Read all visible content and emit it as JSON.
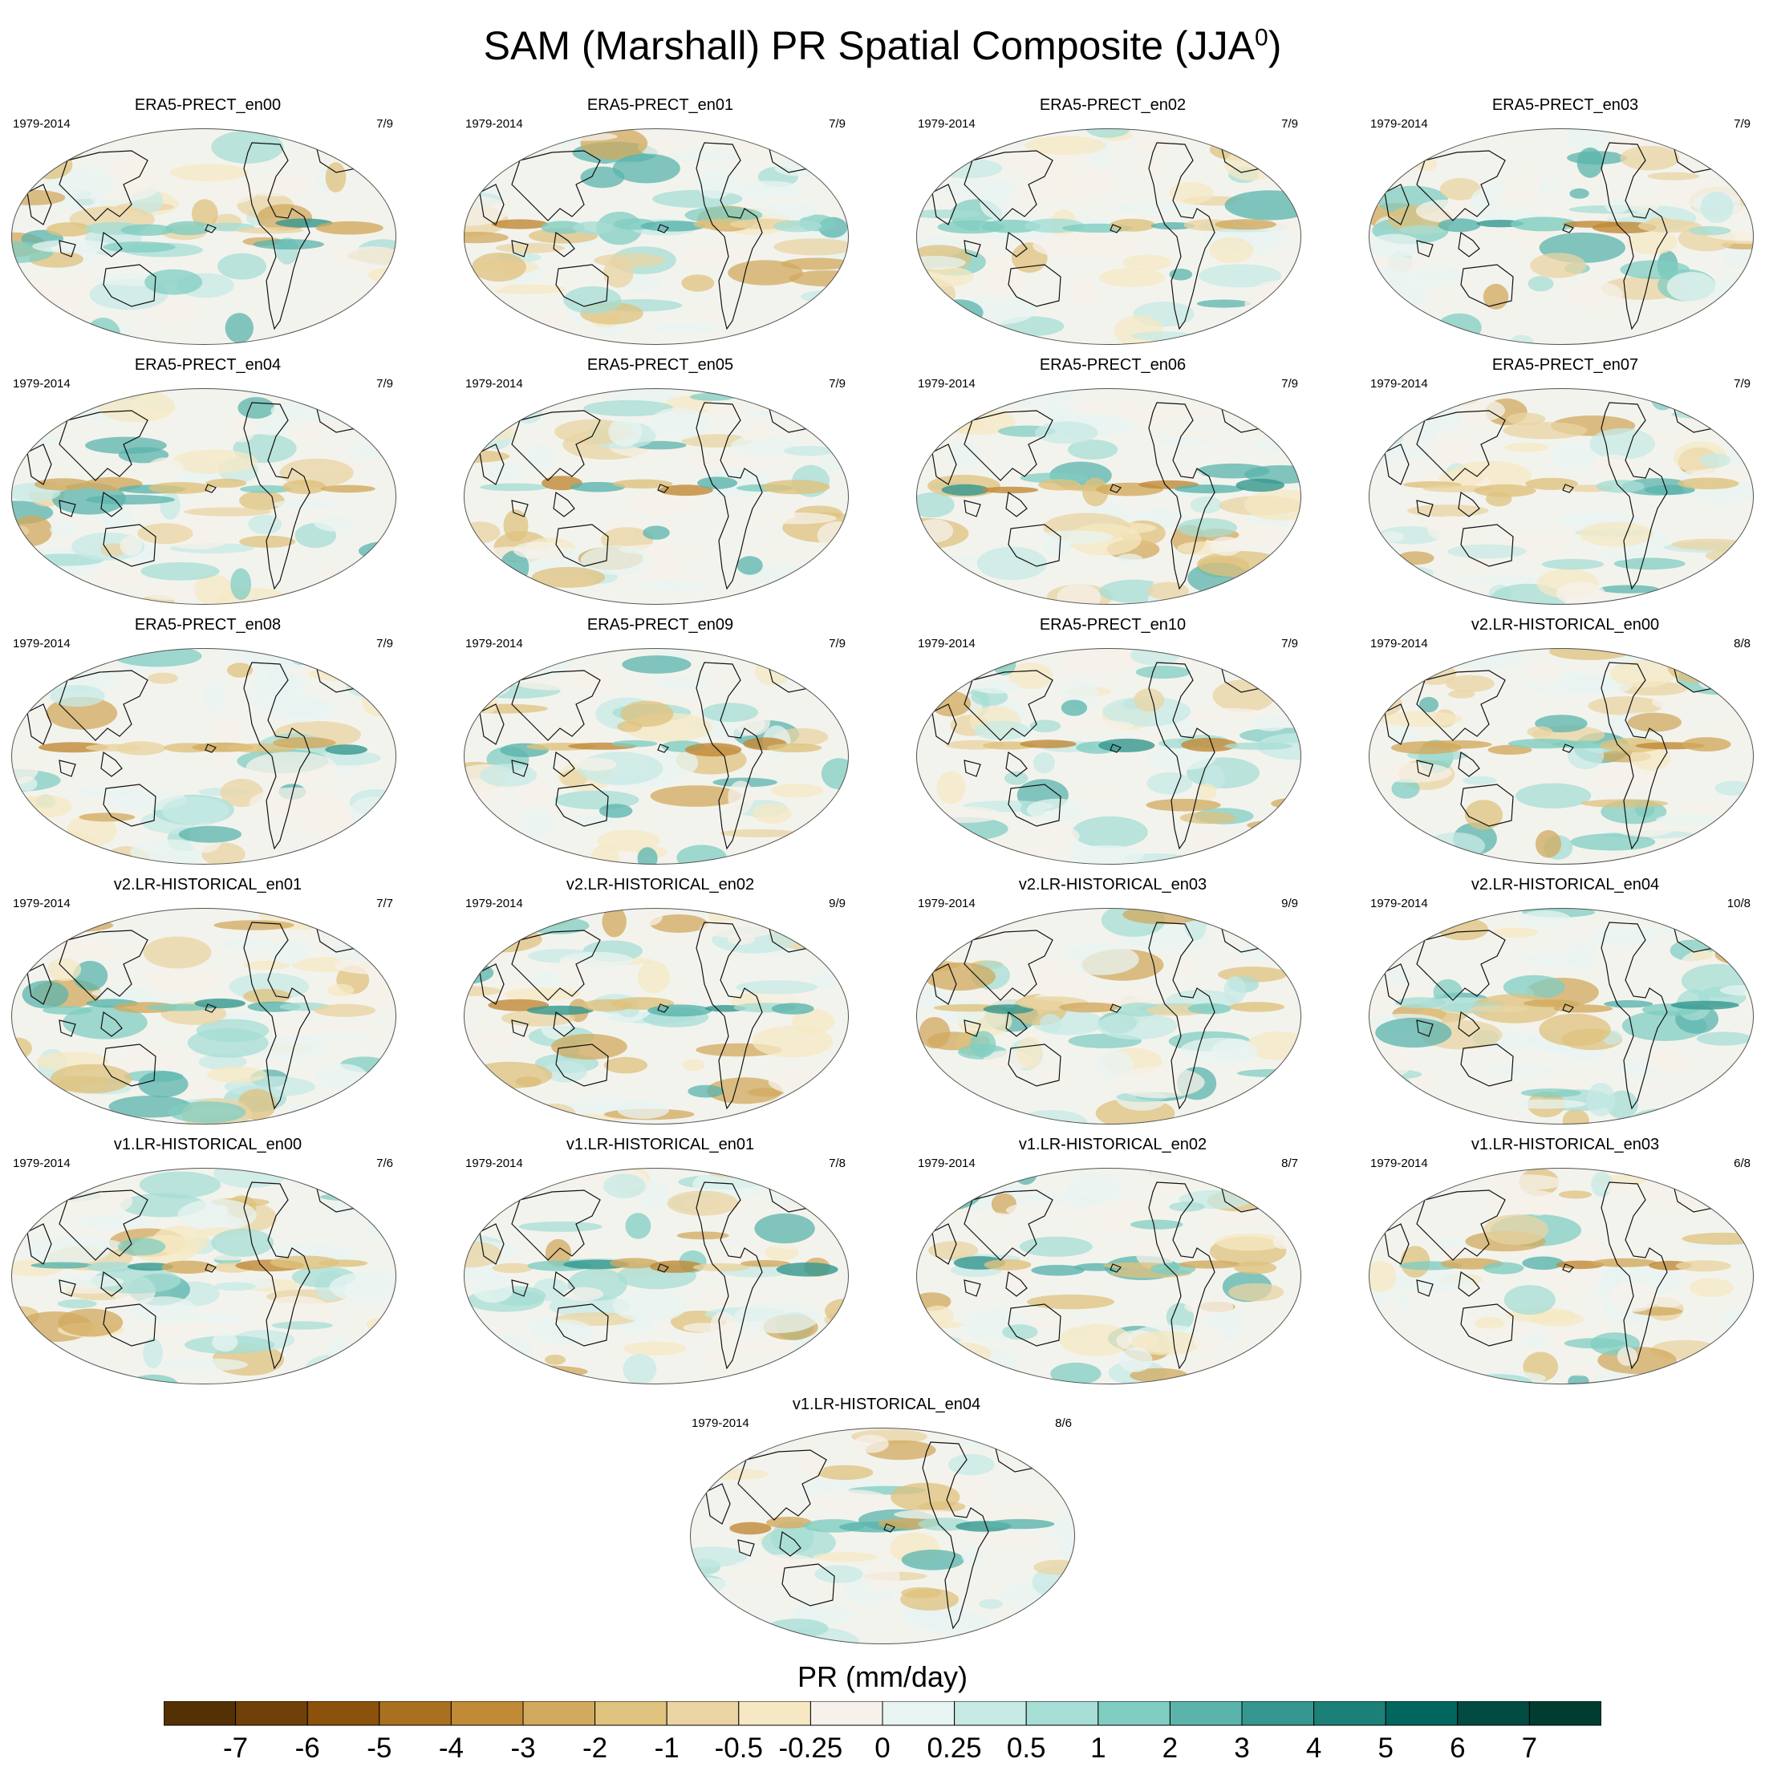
{
  "title": "SAM (Marshall) PR Spatial Composite (JJA",
  "title_superscript": "0",
  "title_suffix": ")",
  "panels": [
    {
      "name": "ERA5-PRECT_en00",
      "period": "1979-2014",
      "count": "7/9"
    },
    {
      "name": "ERA5-PRECT_en01",
      "period": "1979-2014",
      "count": "7/9"
    },
    {
      "name": "ERA5-PRECT_en02",
      "period": "1979-2014",
      "count": "7/9"
    },
    {
      "name": "ERA5-PRECT_en03",
      "period": "1979-2014",
      "count": "7/9"
    },
    {
      "name": "ERA5-PRECT_en04",
      "period": "1979-2014",
      "count": "7/9"
    },
    {
      "name": "ERA5-PRECT_en05",
      "period": "1979-2014",
      "count": "7/9"
    },
    {
      "name": "ERA5-PRECT_en06",
      "period": "1979-2014",
      "count": "7/9"
    },
    {
      "name": "ERA5-PRECT_en07",
      "period": "1979-2014",
      "count": "7/9"
    },
    {
      "name": "ERA5-PRECT_en08",
      "period": "1979-2014",
      "count": "7/9"
    },
    {
      "name": "ERA5-PRECT_en09",
      "period": "1979-2014",
      "count": "7/9"
    },
    {
      "name": "ERA5-PRECT_en10",
      "period": "1979-2014",
      "count": "7/9"
    },
    {
      "name": "v2.LR-HISTORICAL_en00",
      "period": "1979-2014",
      "count": "8/8"
    },
    {
      "name": "v2.LR-HISTORICAL_en01",
      "period": "1979-2014",
      "count": "7/7"
    },
    {
      "name": "v2.LR-HISTORICAL_en02",
      "period": "1979-2014",
      "count": "9/9"
    },
    {
      "name": "v2.LR-HISTORICAL_en03",
      "period": "1979-2014",
      "count": "9/9"
    },
    {
      "name": "v2.LR-HISTORICAL_en04",
      "period": "1979-2014",
      "count": "10/8"
    },
    {
      "name": "v1.LR-HISTORICAL_en00",
      "period": "1979-2014",
      "count": "7/6"
    },
    {
      "name": "v1.LR-HISTORICAL_en01",
      "period": "1979-2014",
      "count": "7/8"
    },
    {
      "name": "v1.LR-HISTORICAL_en02",
      "period": "1979-2014",
      "count": "8/7"
    },
    {
      "name": "v1.LR-HISTORICAL_en03",
      "period": "1979-2014",
      "count": "6/8"
    },
    {
      "name": "v1.LR-HISTORICAL_en04",
      "period": "1979-2014",
      "count": "8/6"
    }
  ],
  "colorbar": {
    "title": "PR (mm/day)",
    "labels": [
      "-7",
      "-6",
      "-5",
      "-4",
      "-3",
      "-2",
      "-1",
      "-0.5",
      "-0.25",
      "0",
      "0.25",
      "0.5",
      "1",
      "2",
      "3",
      "4",
      "5",
      "6",
      "7"
    ],
    "colors": [
      "#543005",
      "#704009",
      "#8c510a",
      "#a8701f",
      "#c08a36",
      "#d2aa5e",
      "#dfc27d",
      "#ead4a3",
      "#f6e8c3",
      "#f6f1ea",
      "#e8f4f2",
      "#c7eae5",
      "#a6ddd4",
      "#80cdc1",
      "#5ab4ac",
      "#35978f",
      "#1c8079",
      "#01665e",
      "#014b43",
      "#003c30"
    ]
  }
}
